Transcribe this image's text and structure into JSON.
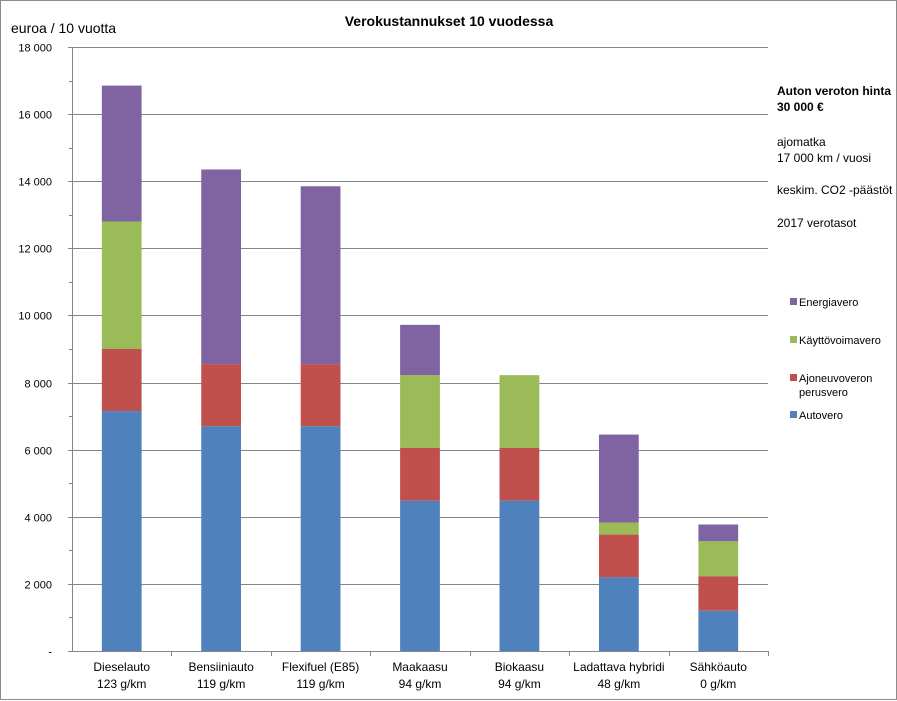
{
  "chart_data": {
    "type": "bar",
    "stacked": true,
    "title": "Verokustannukset 10 vuodessa",
    "ylabel": "euroa / 10 vuotta",
    "ylim": [
      0,
      18000
    ],
    "yticks": [
      0,
      2000,
      4000,
      6000,
      8000,
      10000,
      12000,
      14000,
      16000,
      18000
    ],
    "ytick_labels": [
      "-",
      "2 000",
      "4 000",
      "6 000",
      "8 000",
      "10 000",
      "12 000",
      "14 000",
      "16 000",
      "18 000"
    ],
    "grid": true,
    "categories": [
      {
        "name": "Dieselauto",
        "sub": "123 g/km"
      },
      {
        "name": "Bensiiniauto",
        "sub": "119 g/km"
      },
      {
        "name": "Flexifuel (E85)",
        "sub": "119 g/km"
      },
      {
        "name": "Maakaasu",
        "sub": "94 g/km"
      },
      {
        "name": "Biokaasu",
        "sub": "94 g/km"
      },
      {
        "name": "Ladattava hybridi",
        "sub": "48 g/km"
      },
      {
        "name": "Sähköauto",
        "sub": "0 g/km"
      }
    ],
    "series": [
      {
        "name": "Autovero",
        "color": "#4f81bd",
        "values": [
          7150,
          6700,
          6700,
          4480,
          4480,
          2200,
          1200
        ]
      },
      {
        "name": "Ajoneuvoveron perusvero",
        "color": "#c0504d",
        "values": [
          1850,
          1850,
          1850,
          1570,
          1570,
          1270,
          1030
        ]
      },
      {
        "name": "Käyttövoimavero",
        "color": "#9bbb59",
        "values": [
          3800,
          0,
          0,
          2170,
          2170,
          360,
          1040
        ]
      },
      {
        "name": "Energiavero",
        "color": "#8064a2",
        "values": [
          4050,
          5800,
          5300,
          1500,
          0,
          2620,
          500
        ]
      }
    ],
    "legend_order": [
      "Energiavero",
      "Käyttövoimavero",
      "Ajoneuvoveron perusvero",
      "Autovero"
    ],
    "legend_display": [
      [
        "Energiavero"
      ],
      [
        "Käyttövoimavero"
      ],
      [
        "Ajoneuvoveron",
        "perusvero"
      ],
      [
        "Autovero"
      ]
    ],
    "legend_position": "right"
  },
  "notes": {
    "price_line1": "Auton veroton hinta",
    "price_line2": "30 000 €",
    "distance_line1": "ajomatka",
    "distance_line2": "17 000 km / vuosi",
    "emissions": "keskim. CO2 -päästöt",
    "tax_level": "2017 verotasot"
  }
}
